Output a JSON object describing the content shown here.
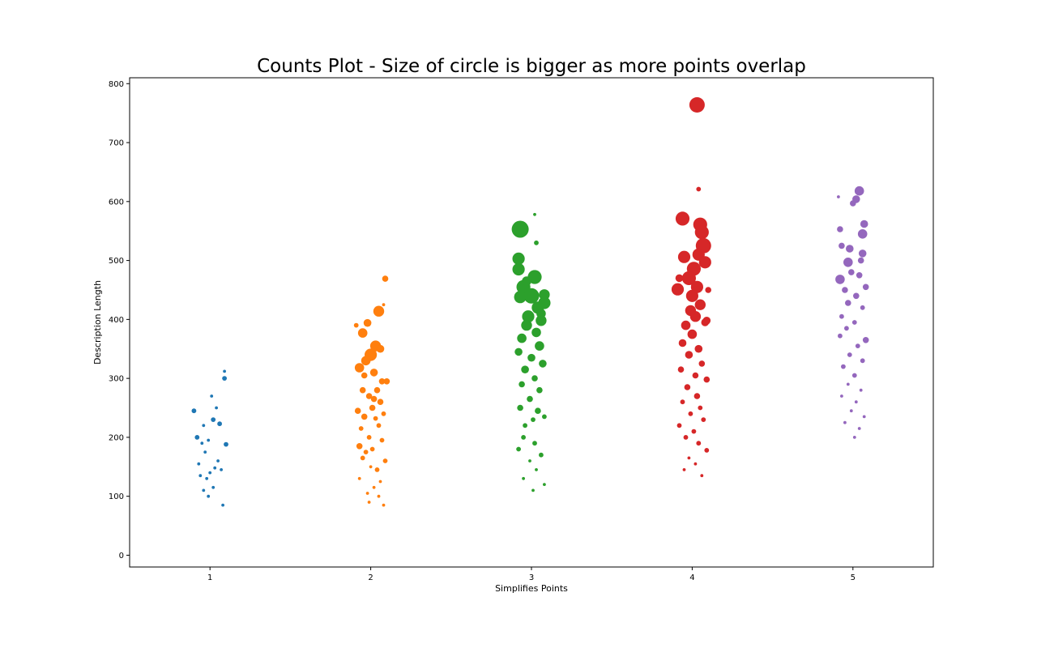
{
  "chart_data": {
    "type": "scatter",
    "title": "Counts Plot - Size of circle is bigger as more points overlap",
    "xlabel": "Simplifies Points",
    "ylabel": "Description Length",
    "x_ticks": [
      1,
      2,
      3,
      4,
      5
    ],
    "y_ticks": [
      0,
      100,
      200,
      300,
      400,
      500,
      600,
      700,
      800
    ],
    "xlim": [
      0.5,
      5.5
    ],
    "ylim": [
      -20,
      810
    ],
    "grid": false,
    "series": [
      {
        "x": 1,
        "color": "#1f77b4",
        "points": [
          [
            0.9,
            245,
            2
          ],
          [
            0.92,
            200,
            2
          ],
          [
            1.09,
            300,
            2
          ],
          [
            1.06,
            223,
            2
          ],
          [
            1.1,
            188,
            2
          ],
          [
            1.01,
            270,
            1
          ],
          [
            1.02,
            230,
            2
          ],
          [
            0.96,
            220,
            1
          ],
          [
            0.99,
            195,
            1
          ],
          [
            0.95,
            190,
            1
          ],
          [
            0.97,
            175,
            1
          ],
          [
            1.05,
            160,
            1
          ],
          [
            0.93,
            155,
            1
          ],
          [
            1.03,
            148,
            1
          ],
          [
            0.98,
            130,
            1
          ],
          [
            1.0,
            140,
            1
          ],
          [
            0.94,
            135,
            1
          ],
          [
            1.07,
            145,
            1
          ],
          [
            1.02,
            115,
            1
          ],
          [
            0.96,
            110,
            1
          ],
          [
            1.09,
            312,
            1
          ],
          [
            1.04,
            250,
            1
          ],
          [
            0.99,
            100,
            1
          ],
          [
            1.08,
            85,
            1
          ]
        ]
      },
      {
        "x": 2,
        "color": "#ff7f0e",
        "points": [
          [
            2.05,
            414,
            6
          ],
          [
            2.09,
            469,
            3
          ],
          [
            1.98,
            394,
            4
          ],
          [
            1.95,
            377,
            5
          ],
          [
            2.0,
            340,
            7
          ],
          [
            2.03,
            355,
            6
          ],
          [
            1.97,
            330,
            5
          ],
          [
            1.93,
            318,
            5
          ],
          [
            2.02,
            310,
            4
          ],
          [
            2.07,
            295,
            3
          ],
          [
            2.1,
            295,
            3
          ],
          [
            2.04,
            280,
            3
          ],
          [
            1.99,
            270,
            3
          ],
          [
            1.95,
            280,
            3
          ],
          [
            2.06,
            260,
            3
          ],
          [
            1.92,
            245,
            3
          ],
          [
            2.01,
            250,
            3
          ],
          [
            2.08,
            240,
            2
          ],
          [
            1.96,
            235,
            3
          ],
          [
            2.03,
            232,
            2
          ],
          [
            1.94,
            215,
            2
          ],
          [
            2.05,
            220,
            2
          ],
          [
            1.99,
            200,
            2
          ],
          [
            1.93,
            185,
            3
          ],
          [
            2.07,
            195,
            2
          ],
          [
            2.01,
            180,
            2
          ],
          [
            1.97,
            175,
            2
          ],
          [
            2.09,
            160,
            2
          ],
          [
            2.04,
            145,
            2
          ],
          [
            1.95,
            165,
            2
          ],
          [
            2.0,
            150,
            1
          ],
          [
            1.93,
            130,
            1
          ],
          [
            2.06,
            125,
            1
          ],
          [
            2.02,
            115,
            1
          ],
          [
            1.98,
            105,
            1
          ],
          [
            2.05,
            100,
            1
          ],
          [
            1.91,
            390,
            2
          ],
          [
            2.08,
            425,
            1
          ],
          [
            2.06,
            350,
            4
          ],
          [
            1.96,
            305,
            3
          ],
          [
            2.02,
            265,
            3
          ],
          [
            1.99,
            90,
            1
          ],
          [
            2.08,
            85,
            1
          ]
        ]
      },
      {
        "x": 3,
        "color": "#2ca02c",
        "points": [
          [
            2.93,
            553,
            10
          ],
          [
            2.92,
            503,
            7
          ],
          [
            2.92,
            485,
            7
          ],
          [
            3.02,
            472,
            8
          ],
          [
            2.95,
            455,
            8
          ],
          [
            3.0,
            440,
            9
          ],
          [
            2.93,
            438,
            7
          ],
          [
            3.08,
            442,
            6
          ],
          [
            3.08,
            428,
            7
          ],
          [
            3.04,
            420,
            7
          ],
          [
            2.98,
            405,
            7
          ],
          [
            3.06,
            398,
            6
          ],
          [
            2.97,
            390,
            6
          ],
          [
            3.03,
            378,
            5
          ],
          [
            2.94,
            368,
            5
          ],
          [
            3.05,
            355,
            5
          ],
          [
            2.92,
            345,
            4
          ],
          [
            3.0,
            335,
            4
          ],
          [
            3.07,
            325,
            4
          ],
          [
            2.96,
            315,
            4
          ],
          [
            3.02,
            300,
            3
          ],
          [
            2.94,
            290,
            3
          ],
          [
            3.05,
            280,
            3
          ],
          [
            2.99,
            265,
            3
          ],
          [
            2.93,
            250,
            3
          ],
          [
            3.04,
            245,
            3
          ],
          [
            3.01,
            230,
            2
          ],
          [
            2.96,
            220,
            2
          ],
          [
            3.08,
            235,
            2
          ],
          [
            2.95,
            200,
            2
          ],
          [
            3.02,
            190,
            2
          ],
          [
            2.92,
            180,
            2
          ],
          [
            3.06,
            170,
            2
          ],
          [
            2.99,
            160,
            1
          ],
          [
            3.03,
            145,
            1
          ],
          [
            2.95,
            130,
            1
          ],
          [
            3.08,
            120,
            1
          ],
          [
            3.01,
            110,
            1
          ],
          [
            3.02,
            578,
            1
          ],
          [
            3.03,
            530,
            2
          ],
          [
            3.06,
            410,
            5
          ],
          [
            2.97,
            465,
            5
          ]
        ]
      },
      {
        "x": 4,
        "color": "#d62728",
        "points": [
          [
            4.03,
            764,
            9
          ],
          [
            4.04,
            621,
            2
          ],
          [
            3.94,
            571,
            8
          ],
          [
            4.05,
            561,
            8
          ],
          [
            4.06,
            548,
            8
          ],
          [
            4.07,
            525,
            9
          ],
          [
            3.95,
            506,
            7
          ],
          [
            4.04,
            510,
            7
          ],
          [
            4.08,
            497,
            7
          ],
          [
            4.01,
            486,
            8
          ],
          [
            3.98,
            470,
            8
          ],
          [
            3.91,
            451,
            7
          ],
          [
            4.03,
            455,
            7
          ],
          [
            4.0,
            440,
            7
          ],
          [
            4.05,
            425,
            6
          ],
          [
            3.99,
            415,
            6
          ],
          [
            4.02,
            405,
            6
          ],
          [
            3.96,
            390,
            5
          ],
          [
            4.08,
            395,
            4
          ],
          [
            4.0,
            375,
            5
          ],
          [
            3.94,
            360,
            4
          ],
          [
            4.04,
            350,
            4
          ],
          [
            3.98,
            340,
            4
          ],
          [
            4.06,
            325,
            3
          ],
          [
            3.93,
            315,
            3
          ],
          [
            4.02,
            305,
            3
          ],
          [
            4.09,
            298,
            3
          ],
          [
            3.97,
            285,
            3
          ],
          [
            4.03,
            270,
            3
          ],
          [
            3.94,
            260,
            2
          ],
          [
            4.05,
            250,
            2
          ],
          [
            3.99,
            240,
            2
          ],
          [
            4.07,
            230,
            2
          ],
          [
            3.92,
            220,
            2
          ],
          [
            4.01,
            210,
            2
          ],
          [
            3.96,
            200,
            2
          ],
          [
            4.04,
            190,
            2
          ],
          [
            4.09,
            178,
            2
          ],
          [
            3.98,
            165,
            1
          ],
          [
            4.02,
            155,
            1
          ],
          [
            3.95,
            145,
            1
          ],
          [
            4.06,
            135,
            1
          ],
          [
            4.1,
            450,
            3
          ],
          [
            3.92,
            470,
            4
          ],
          [
            4.09,
            398,
            4
          ]
        ]
      },
      {
        "x": 5,
        "color": "#9467bd",
        "points": [
          [
            5.04,
            618,
            5
          ],
          [
            5.02,
            604,
            4
          ],
          [
            5.0,
            597,
            3
          ],
          [
            4.92,
            553,
            3
          ],
          [
            5.07,
            562,
            4
          ],
          [
            5.06,
            545,
            5
          ],
          [
            4.93,
            525,
            3
          ],
          [
            4.98,
            520,
            4
          ],
          [
            5.06,
            512,
            4
          ],
          [
            4.97,
            497,
            5
          ],
          [
            5.05,
            500,
            3
          ],
          [
            4.99,
            480,
            3
          ],
          [
            4.92,
            468,
            5
          ],
          [
            5.04,
            475,
            3
          ],
          [
            5.08,
            455,
            3
          ],
          [
            4.95,
            450,
            3
          ],
          [
            5.02,
            440,
            3
          ],
          [
            4.97,
            428,
            3
          ],
          [
            5.06,
            420,
            2
          ],
          [
            4.93,
            405,
            2
          ],
          [
            5.01,
            395,
            2
          ],
          [
            4.96,
            385,
            2
          ],
          [
            5.08,
            365,
            3
          ],
          [
            4.92,
            372,
            2
          ],
          [
            5.03,
            355,
            2
          ],
          [
            4.98,
            340,
            2
          ],
          [
            5.06,
            330,
            2
          ],
          [
            4.94,
            320,
            2
          ],
          [
            5.01,
            305,
            2
          ],
          [
            4.97,
            290,
            1
          ],
          [
            5.05,
            280,
            1
          ],
          [
            4.93,
            270,
            1
          ],
          [
            5.02,
            260,
            1
          ],
          [
            4.99,
            245,
            1
          ],
          [
            5.07,
            235,
            1
          ],
          [
            4.95,
            225,
            1
          ],
          [
            5.04,
            215,
            1
          ],
          [
            4.91,
            608,
            1
          ],
          [
            5.01,
            200,
            1
          ]
        ]
      }
    ]
  }
}
